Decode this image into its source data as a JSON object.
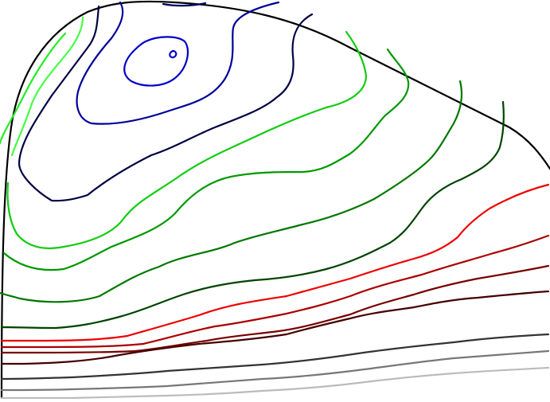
{
  "contours": [
    {
      "id": "boundary",
      "color": "#000000"
    },
    {
      "id": "blue-innermost",
      "color": "#0000cc"
    },
    {
      "id": "blue-inner",
      "color": "#0000cc"
    },
    {
      "id": "navy-1",
      "color": "#000099"
    },
    {
      "id": "navy-2",
      "color": "#000066"
    },
    {
      "id": "navy-3",
      "color": "#000044"
    },
    {
      "id": "green-1",
      "color": "#44ff44"
    },
    {
      "id": "green-2",
      "color": "#22ee22"
    },
    {
      "id": "green-3",
      "color": "#11cc11"
    },
    {
      "id": "green-4",
      "color": "#009900"
    },
    {
      "id": "green-5",
      "color": "#007700"
    },
    {
      "id": "green-6",
      "color": "#004400"
    },
    {
      "id": "red-1",
      "color": "#ee0000"
    },
    {
      "id": "red-2",
      "color": "#aa0000"
    },
    {
      "id": "red-3",
      "color": "#770000"
    },
    {
      "id": "red-4",
      "color": "#440000"
    },
    {
      "id": "gray-1",
      "color": "#333333"
    },
    {
      "id": "gray-2",
      "color": "#777777"
    },
    {
      "id": "gray-3",
      "color": "#bbbbbb"
    }
  ]
}
